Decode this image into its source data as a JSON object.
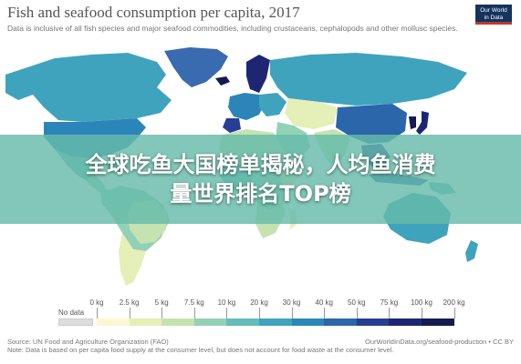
{
  "header": {
    "title": "Fish and seafood consumption per capita, 2017",
    "subtitle": "Data is inclusive of all fish species and major seafood commodities, including crustaceans, cephalopods and other mollusc species.",
    "logo_line1": "Our World",
    "logo_line2": "in Data",
    "logo_color": "#14335e",
    "logo_accent": "#c0392b"
  },
  "overlay": {
    "line1": "全球吃鱼大国榜单揭秘，人均鱼消费",
    "line2": "量世界排名TOP榜",
    "color": "#66bbaa"
  },
  "legend": {
    "no_data_label": "No data",
    "no_data_color": "#dddddd",
    "ticks": [
      "0 kg",
      "2.5 kg",
      "5 kg",
      "7.5 kg",
      "10 kg",
      "20 kg",
      "30 kg",
      "40 kg",
      "50 kg",
      "75 kg",
      "100 kg",
      "200 kg"
    ],
    "colors": [
      "#fbf7d3",
      "#e5efb8",
      "#c4e3b0",
      "#93d1b6",
      "#64bcbb",
      "#3fa3bd",
      "#2c85b8",
      "#2a66a9",
      "#263f95",
      "#1e2674",
      "#141b4f"
    ]
  },
  "footer": {
    "source": "Source: UN Food and Agriculture Organization (FAO)",
    "url": "OurWorldInData.org/seafood-production • CC BY",
    "note": "Note: Data is based on per capita food supply at the consumer level, but does not account for food waste at the consumer level."
  }
}
